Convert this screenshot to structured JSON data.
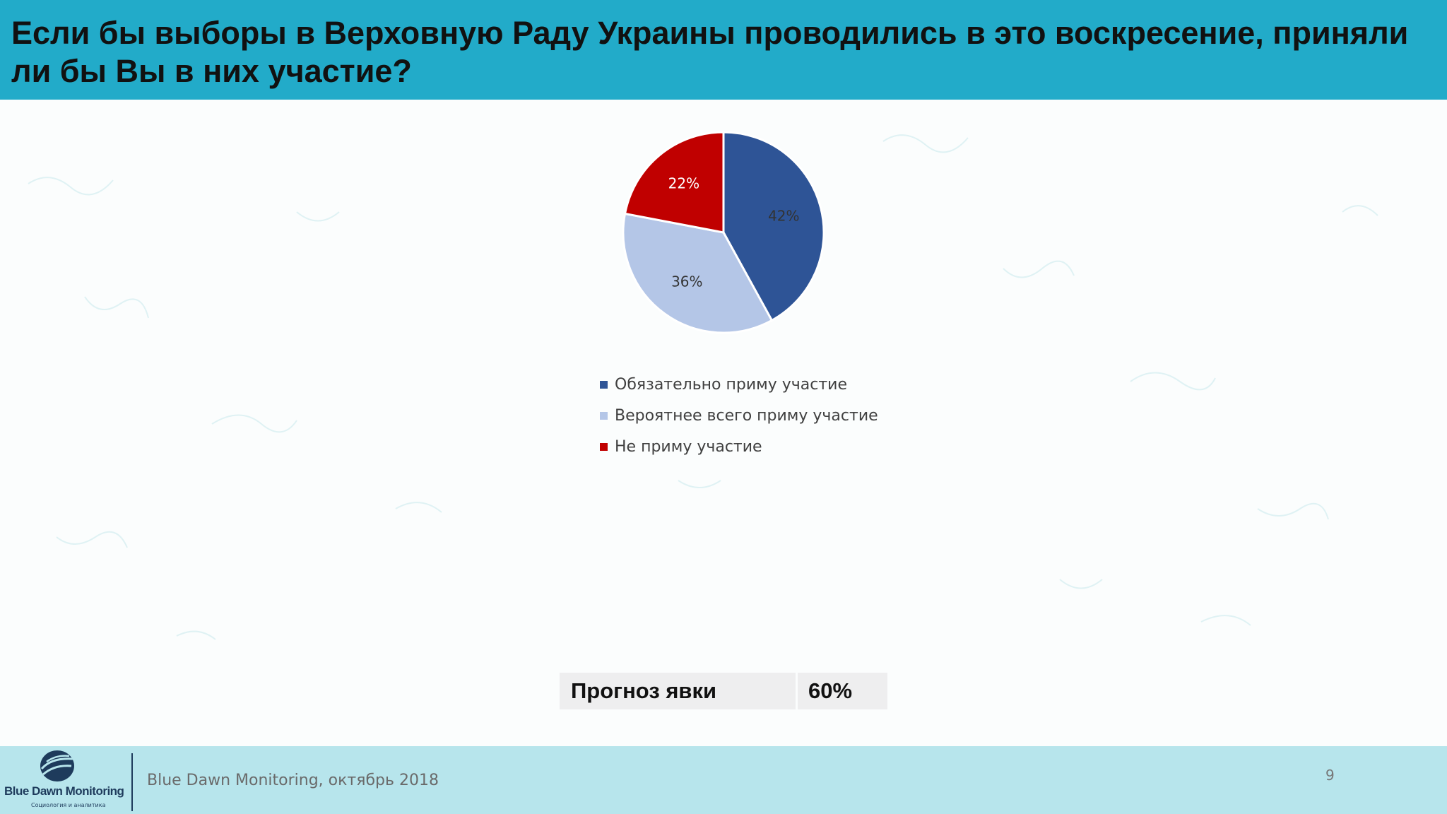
{
  "header": {
    "title": "Если бы выборы в Верховную Раду Украины проводились в это воскресение, приняли ли бы Вы в них участие?"
  },
  "chart_data": {
    "type": "pie",
    "title": "",
    "legend_position": "bottom",
    "slices": [
      {
        "label": "Обязательно приму участие",
        "value": 42,
        "value_label": "42%",
        "color": "#2e5496",
        "label_color": "#333333"
      },
      {
        "label": "Вероятнее всего приму участие",
        "value": 36,
        "value_label": "36%",
        "color": "#b4c6e7",
        "label_color": "#333333"
      },
      {
        "label": "Не приму участие",
        "value": 22,
        "value_label": "22%",
        "color": "#c00000",
        "label_color": "#ffffff"
      }
    ]
  },
  "forecast": {
    "label": "Прогноз явки",
    "value": "60%"
  },
  "footer": {
    "logo_name": "Blue Dawn Monitoring",
    "logo_tagline": "Социология и аналитика",
    "caption": "Blue Dawn Monitoring, октябрь 2018",
    "page_number": "9"
  },
  "colors": {
    "header": "#22abc9",
    "footer": "#b7e5ec",
    "logo": "#1e3b5c"
  }
}
